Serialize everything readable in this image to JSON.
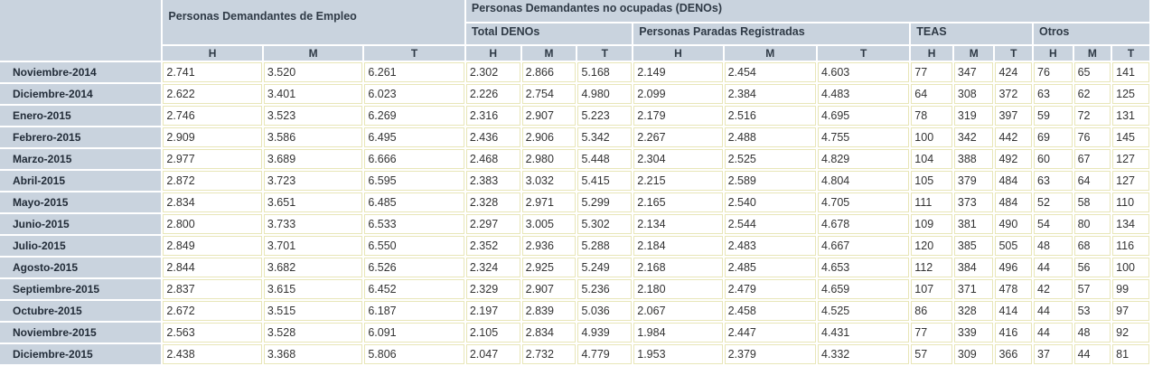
{
  "headers": {
    "demandantes": "Personas Demandantes de Empleo",
    "no_ocupadas": "Personas Demandantes no ocupadas (DENOs)",
    "total_denos": "Total DENOs",
    "paradas": "Personas Paradas Registradas",
    "teas": "TEAS",
    "otros": "Otros",
    "h": "H",
    "m": "M",
    "t": "T"
  },
  "rows": [
    {
      "label": "Noviembre-2014",
      "values": [
        "2.741",
        "3.520",
        "6.261",
        "2.302",
        "2.866",
        "5.168",
        "2.149",
        "2.454",
        "4.603",
        "77",
        "347",
        "424",
        "76",
        "65",
        "141"
      ]
    },
    {
      "label": "Diciembre-2014",
      "values": [
        "2.622",
        "3.401",
        "6.023",
        "2.226",
        "2.754",
        "4.980",
        "2.099",
        "2.384",
        "4.483",
        "64",
        "308",
        "372",
        "63",
        "62",
        "125"
      ]
    },
    {
      "label": "Enero-2015",
      "values": [
        "2.746",
        "3.523",
        "6.269",
        "2.316",
        "2.907",
        "5.223",
        "2.179",
        "2.516",
        "4.695",
        "78",
        "319",
        "397",
        "59",
        "72",
        "131"
      ]
    },
    {
      "label": "Febrero-2015",
      "values": [
        "2.909",
        "3.586",
        "6.495",
        "2.436",
        "2.906",
        "5.342",
        "2.267",
        "2.488",
        "4.755",
        "100",
        "342",
        "442",
        "69",
        "76",
        "145"
      ]
    },
    {
      "label": "Marzo-2015",
      "values": [
        "2.977",
        "3.689",
        "6.666",
        "2.468",
        "2.980",
        "5.448",
        "2.304",
        "2.525",
        "4.829",
        "104",
        "388",
        "492",
        "60",
        "67",
        "127"
      ]
    },
    {
      "label": "Abril-2015",
      "values": [
        "2.872",
        "3.723",
        "6.595",
        "2.383",
        "3.032",
        "5.415",
        "2.215",
        "2.589",
        "4.804",
        "105",
        "379",
        "484",
        "63",
        "64",
        "127"
      ]
    },
    {
      "label": "Mayo-2015",
      "values": [
        "2.834",
        "3.651",
        "6.485",
        "2.328",
        "2.971",
        "5.299",
        "2.165",
        "2.540",
        "4.705",
        "111",
        "373",
        "484",
        "52",
        "58",
        "110"
      ]
    },
    {
      "label": "Junio-2015",
      "values": [
        "2.800",
        "3.733",
        "6.533",
        "2.297",
        "3.005",
        "5.302",
        "2.134",
        "2.544",
        "4.678",
        "109",
        "381",
        "490",
        "54",
        "80",
        "134"
      ]
    },
    {
      "label": "Julio-2015",
      "values": [
        "2.849",
        "3.701",
        "6.550",
        "2.352",
        "2.936",
        "5.288",
        "2.184",
        "2.483",
        "4.667",
        "120",
        "385",
        "505",
        "48",
        "68",
        "116"
      ]
    },
    {
      "label": "Agosto-2015",
      "values": [
        "2.844",
        "3.682",
        "6.526",
        "2.324",
        "2.925",
        "5.249",
        "2.168",
        "2.485",
        "4.653",
        "112",
        "384",
        "496",
        "44",
        "56",
        "100"
      ]
    },
    {
      "label": "Septiembre-2015",
      "values": [
        "2.837",
        "3.615",
        "6.452",
        "2.329",
        "2.907",
        "5.236",
        "2.180",
        "2.479",
        "4.659",
        "107",
        "371",
        "478",
        "42",
        "57",
        "99"
      ]
    },
    {
      "label": "Octubre-2015",
      "values": [
        "2.672",
        "3.515",
        "6.187",
        "2.197",
        "2.839",
        "5.036",
        "2.067",
        "2.458",
        "4.525",
        "86",
        "328",
        "414",
        "44",
        "53",
        "97"
      ]
    },
    {
      "label": "Noviembre-2015",
      "values": [
        "2.563",
        "3.528",
        "6.091",
        "2.105",
        "2.834",
        "4.939",
        "1.984",
        "2.447",
        "4.431",
        "77",
        "339",
        "416",
        "44",
        "48",
        "92"
      ]
    },
    {
      "label": "Diciembre-2015",
      "values": [
        "2.438",
        "3.368",
        "5.806",
        "2.047",
        "2.732",
        "4.779",
        "1.953",
        "2.379",
        "4.332",
        "57",
        "309",
        "366",
        "37",
        "44",
        "81"
      ]
    }
  ]
}
